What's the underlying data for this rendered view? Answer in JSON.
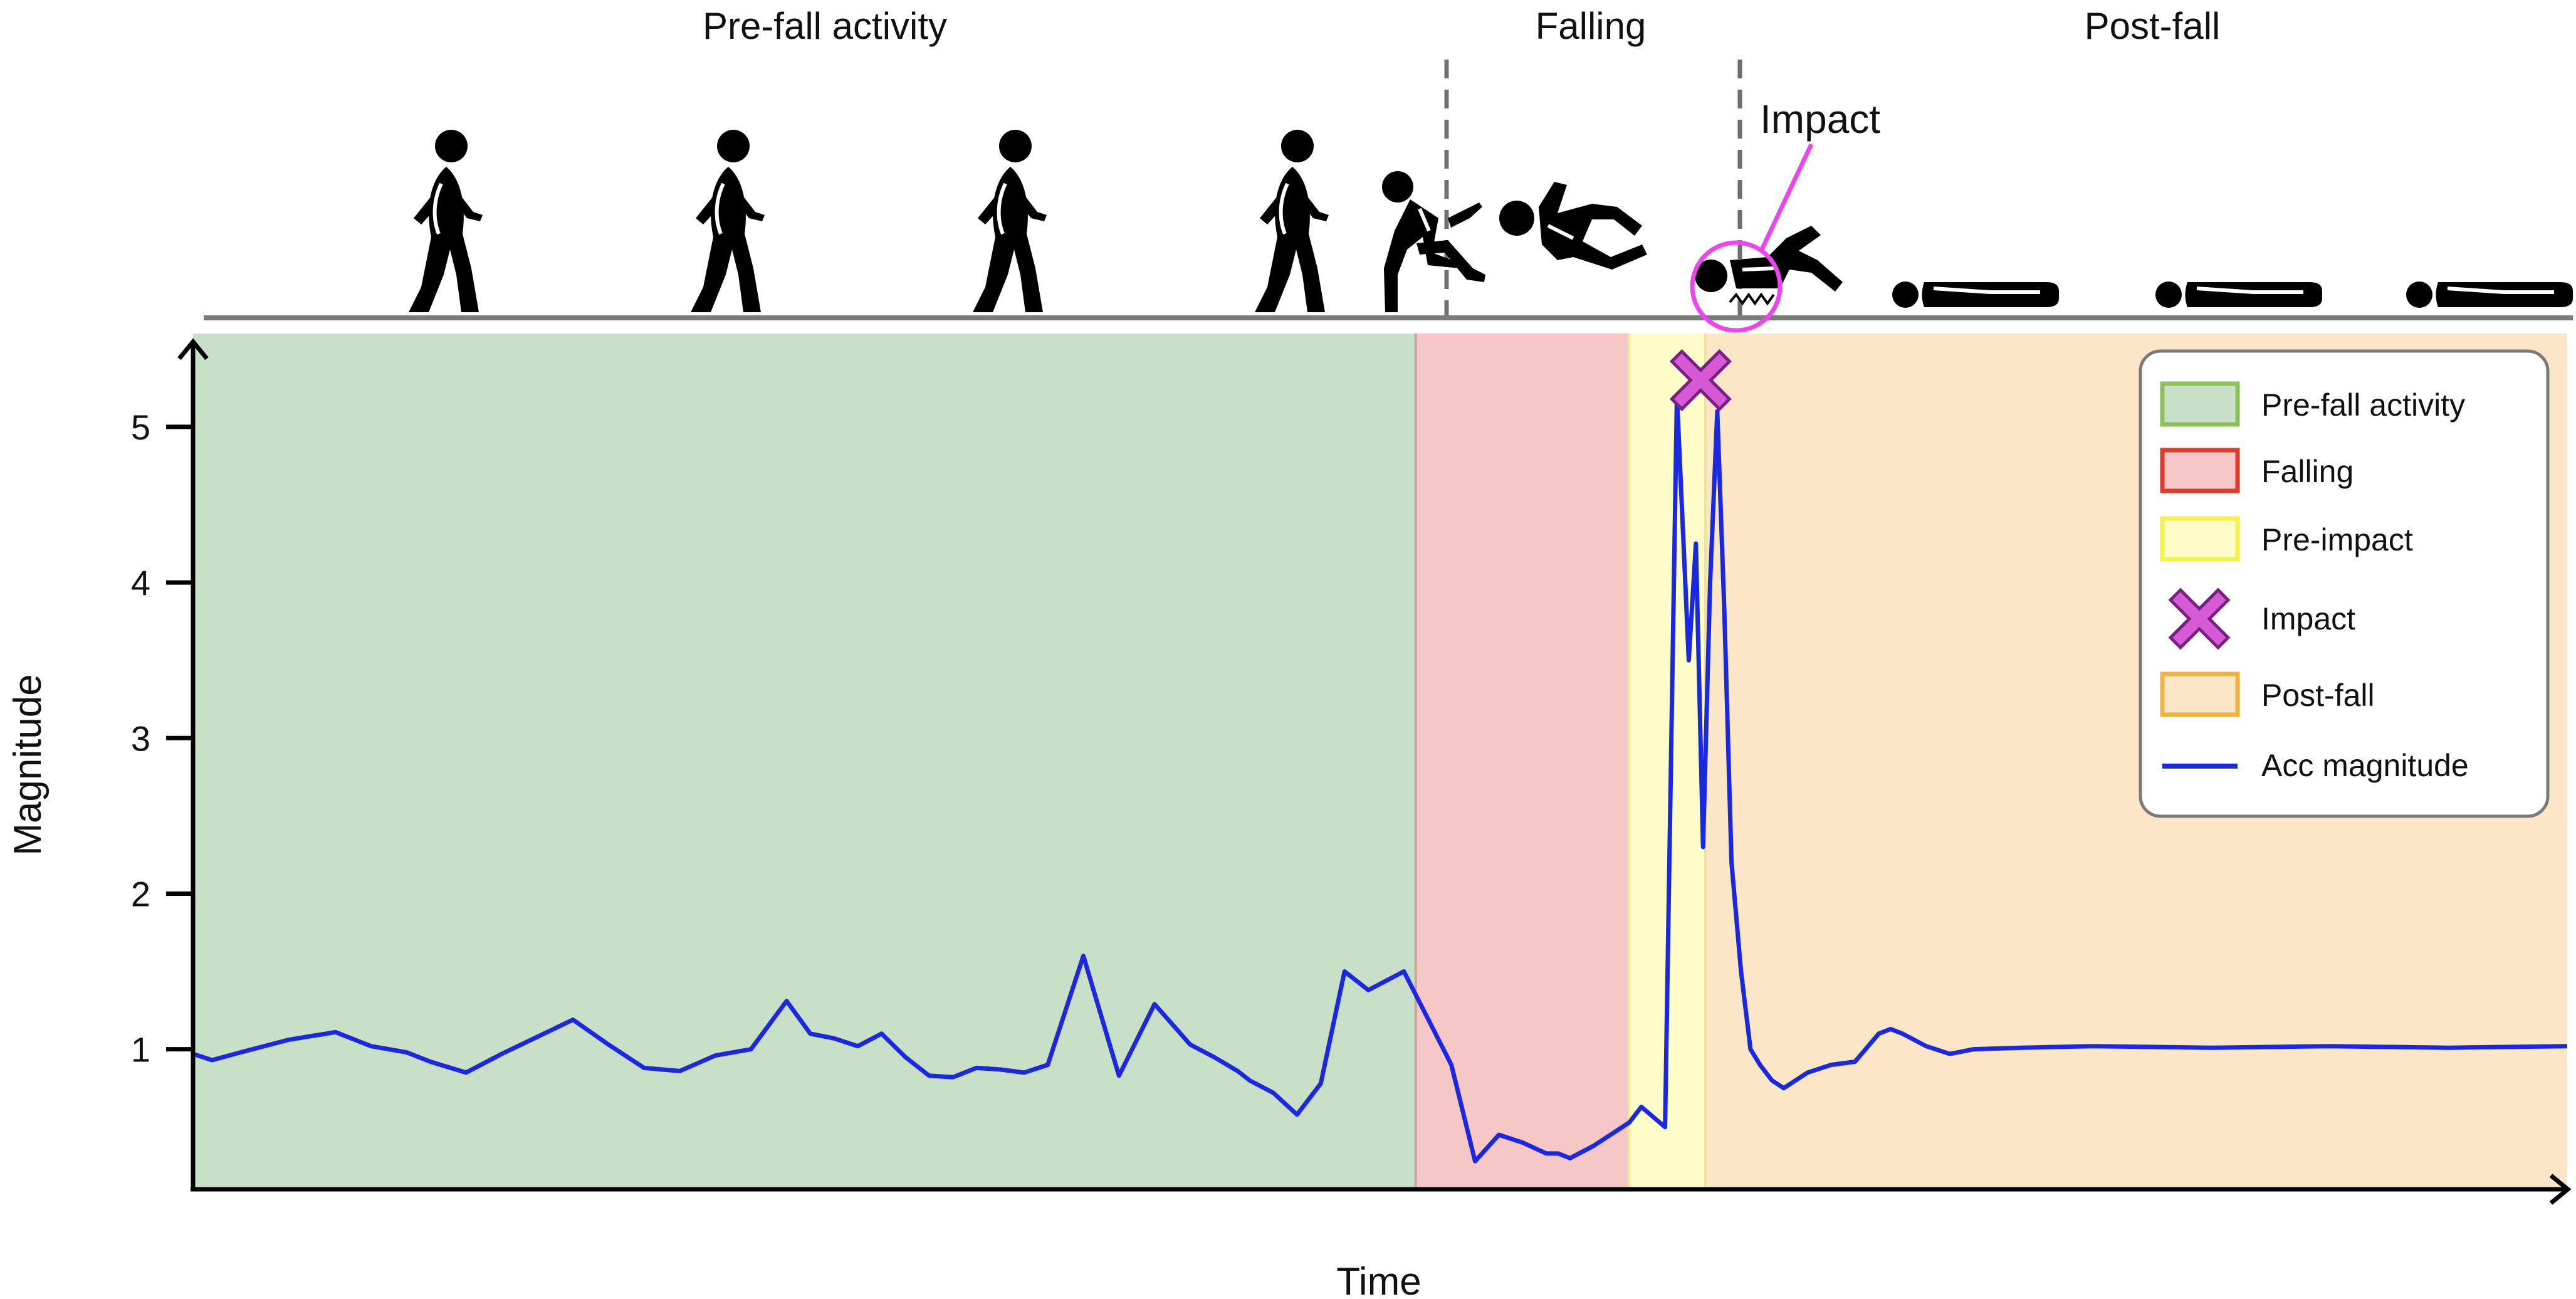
{
  "phase_labels": {
    "pre_fall": "Pre-fall activity",
    "falling": "Falling",
    "post_fall": "Post-fall",
    "impact": "Impact"
  },
  "colors": {
    "pre_fall": "#c9dfc8",
    "falling": "#f7c6c7",
    "pre_impact": "#fefcc9",
    "post_fall": "#fbe6c8",
    "impact_marker": "#d65ad6",
    "impact_circle": "#ee44ee",
    "line": "#1a28e0",
    "ground": "#7a7a7a",
    "legend_borders": {
      "pre_fall": "#8bc25a",
      "falling": "#e03a2a",
      "pre_impact": "#f5f04a",
      "post_fall": "#f2b240"
    }
  },
  "icons": {
    "figures": [
      "walking-person-icon",
      "walking-person-icon",
      "walking-person-icon",
      "walking-person-icon",
      "stumbling-person-icon",
      "falling-person-icon",
      "impact-person-icon",
      "lying-person-icon",
      "lying-person-icon",
      "lying-person-icon"
    ]
  },
  "chart_data": {
    "type": "line",
    "title": "",
    "xlabel": "Time",
    "ylabel": "Magnitude",
    "y_ticks": [
      "1",
      "2",
      "3",
      "4",
      "5"
    ],
    "ylim": [
      0.1,
      5.6
    ],
    "xlim": [
      0,
      100
    ],
    "phases": [
      {
        "name": "Pre-fall activity",
        "start": 0,
        "end": 51.5
      },
      {
        "name": "Falling",
        "start": 51.5,
        "end": 60.5
      },
      {
        "name": "Pre-impact",
        "start": 60.5,
        "end": 63.7
      },
      {
        "name": "Post-fall",
        "start": 63.7,
        "end": 100
      }
    ],
    "impact": {
      "x": 63.5,
      "y": 5.3
    },
    "legend": {
      "position": "top-right",
      "entries": [
        "Pre-fall activity",
        "Falling",
        "Pre-impact",
        "Impact",
        "Post-fall",
        "Acc magnitude"
      ]
    },
    "series": [
      {
        "name": "Acc magnitude",
        "x": [
          0,
          0.8,
          2,
          4,
          6,
          7.5,
          9,
          10,
          11.5,
          13,
          14.5,
          16,
          17.5,
          19,
          20.5,
          22,
          23.5,
          25,
          26,
          27,
          28,
          29,
          30,
          31,
          32,
          33,
          34,
          35,
          36,
          37.5,
          39,
          40.5,
          42,
          43,
          44,
          44.5,
          45.5,
          46.5,
          47.5,
          48.5,
          49.5,
          51,
          52,
          53,
          54,
          55,
          56,
          57,
          57.5,
          58,
          59,
          60,
          60.5,
          61,
          62,
          62.5,
          63,
          63.3,
          63.6,
          63.9,
          64.2,
          64.5,
          64.8,
          65.2,
          65.6,
          66,
          66.5,
          67,
          68,
          69,
          70,
          71,
          71.5,
          72,
          73,
          74,
          75,
          77,
          80,
          85,
          90,
          95,
          100
        ],
        "y": [
          0.97,
          0.93,
          0.98,
          1.06,
          1.11,
          1.02,
          0.98,
          0.92,
          0.85,
          0.97,
          1.08,
          1.19,
          1.03,
          0.88,
          0.86,
          0.96,
          1.0,
          1.31,
          1.1,
          1.07,
          1.02,
          1.1,
          0.95,
          0.83,
          0.82,
          0.88,
          0.87,
          0.85,
          0.9,
          1.6,
          0.83,
          1.29,
          1.03,
          0.95,
          0.86,
          0.8,
          0.72,
          0.58,
          0.78,
          1.5,
          1.38,
          1.5,
          1.2,
          0.9,
          0.28,
          0.45,
          0.4,
          0.33,
          0.33,
          0.3,
          0.38,
          0.48,
          0.53,
          0.63,
          0.5,
          5.2,
          3.5,
          4.25,
          2.3,
          4.0,
          5.1,
          3.8,
          2.2,
          1.5,
          1.0,
          0.9,
          0.8,
          0.75,
          0.85,
          0.9,
          0.92,
          1.1,
          1.13,
          1.1,
          1.02,
          0.97,
          1.0,
          1.01,
          1.02,
          1.01,
          1.02,
          1.01,
          1.02
        ]
      }
    ]
  }
}
